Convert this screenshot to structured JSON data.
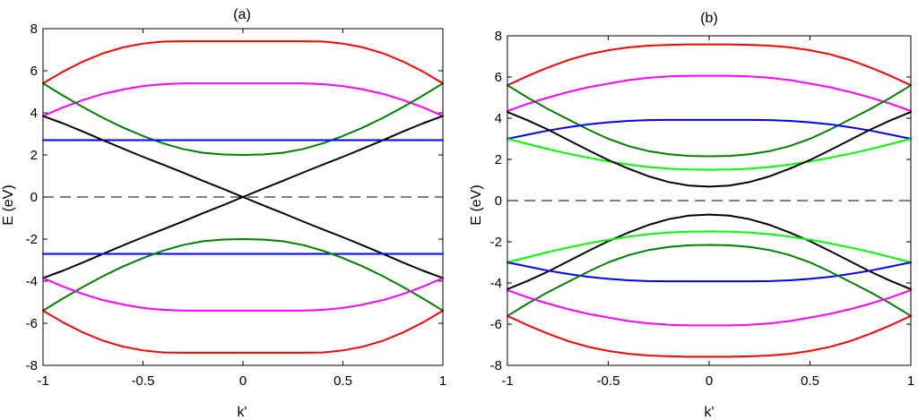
{
  "chart_data": [
    {
      "type": "line",
      "title": "(a)",
      "xlabel": "k'",
      "ylabel": "E (eV)",
      "xlim": [
        -1,
        1
      ],
      "ylim": [
        -8,
        8
      ],
      "x_ticks": [
        "-1",
        "-0.5",
        "0",
        "0.5",
        "1"
      ],
      "y_ticks": [
        "8",
        "6",
        "4",
        "2",
        "0",
        "-2",
        "-4",
        "-6",
        "-8"
      ],
      "grid": false,
      "x": [
        -1,
        -0.9,
        -0.8,
        -0.7,
        -0.6,
        -0.5,
        -0.4,
        -0.3,
        -0.2,
        -0.1,
        0,
        0.1,
        0.2,
        0.3,
        0.4,
        0.5,
        0.6,
        0.7,
        0.8,
        0.9,
        1
      ],
      "reference_line": {
        "y": 0,
        "style": "dashed",
        "color": "#000000"
      },
      "series": [
        {
          "color": "#ff0000",
          "values": [
            5.4,
            5.96,
            6.44,
            6.83,
            7.11,
            7.29,
            7.39,
            7.4,
            7.4,
            7.4,
            7.4,
            7.4,
            7.4,
            7.4,
            7.39,
            7.29,
            7.11,
            6.83,
            6.44,
            5.96,
            5.4
          ]
        },
        {
          "color": "#ff00ff",
          "values": [
            3.85,
            4.26,
            4.61,
            4.9,
            5.11,
            5.27,
            5.36,
            5.4,
            5.4,
            5.4,
            5.4,
            5.4,
            5.4,
            5.4,
            5.36,
            5.27,
            5.11,
            4.9,
            4.61,
            4.26,
            3.85
          ]
        },
        {
          "color": "#008000",
          "values": [
            5.4,
            4.82,
            4.27,
            3.76,
            3.3,
            2.9,
            2.55,
            2.28,
            2.1,
            2.02,
            2.0,
            2.02,
            2.1,
            2.28,
            2.55,
            2.9,
            3.3,
            3.76,
            4.27,
            4.82,
            5.4
          ]
        },
        {
          "color": "#0000ff",
          "values": [
            2.7,
            2.7,
            2.7,
            2.7,
            2.7,
            2.7,
            2.7,
            2.7,
            2.7,
            2.7,
            2.7,
            2.7,
            2.7,
            2.7,
            2.7,
            2.7,
            2.7,
            2.7,
            2.7,
            2.7,
            2.7
          ]
        },
        {
          "color": "#000000",
          "values": [
            3.85,
            3.5,
            3.11,
            2.7,
            2.3,
            1.91,
            1.54,
            1.16,
            0.77,
            0.39,
            0,
            0.39,
            0.77,
            1.16,
            1.54,
            1.91,
            2.3,
            2.7,
            3.11,
            3.5,
            3.85
          ]
        },
        {
          "color": "#000000",
          "values": [
            -3.85,
            -3.5,
            -3.11,
            -2.7,
            -2.3,
            -1.91,
            -1.54,
            -1.16,
            -0.77,
            -0.39,
            0,
            -0.39,
            -0.77,
            -1.16,
            -1.54,
            -1.91,
            -2.3,
            -2.7,
            -3.11,
            -3.5,
            -3.85
          ]
        },
        {
          "color": "#0000ff",
          "values": [
            -2.7,
            -2.7,
            -2.7,
            -2.7,
            -2.7,
            -2.7,
            -2.7,
            -2.7,
            -2.7,
            -2.7,
            -2.7,
            -2.7,
            -2.7,
            -2.7,
            -2.7,
            -2.7,
            -2.7,
            -2.7,
            -2.7,
            -2.7,
            -2.7
          ]
        },
        {
          "color": "#008000",
          "values": [
            -5.4,
            -4.82,
            -4.27,
            -3.76,
            -3.3,
            -2.9,
            -2.55,
            -2.28,
            -2.1,
            -2.02,
            -2.0,
            -2.02,
            -2.1,
            -2.28,
            -2.55,
            -2.9,
            -3.3,
            -3.76,
            -4.27,
            -4.82,
            -5.4
          ]
        },
        {
          "color": "#ff00ff",
          "values": [
            -3.85,
            -4.26,
            -4.61,
            -4.9,
            -5.11,
            -5.27,
            -5.36,
            -5.4,
            -5.4,
            -5.4,
            -5.4,
            -5.4,
            -5.4,
            -5.4,
            -5.36,
            -5.27,
            -5.11,
            -4.9,
            -4.61,
            -4.26,
            -3.85
          ]
        },
        {
          "color": "#ff0000",
          "values": [
            -5.4,
            -5.96,
            -6.44,
            -6.83,
            -7.11,
            -7.29,
            -7.39,
            -7.4,
            -7.4,
            -7.4,
            -7.4,
            -7.4,
            -7.4,
            -7.4,
            -7.39,
            -7.29,
            -7.11,
            -6.83,
            -6.44,
            -5.96,
            -5.4
          ]
        }
      ]
    },
    {
      "type": "line",
      "title": "(b)",
      "xlabel": "k'",
      "ylabel": "E (eV)",
      "xlim": [
        -1,
        1
      ],
      "ylim": [
        -8,
        8
      ],
      "x_ticks": [
        "-1",
        "-0.5",
        "0",
        "0.5",
        "1"
      ],
      "y_ticks": [
        "8",
        "6",
        "4",
        "2",
        "0",
        "-2",
        "-4",
        "-6",
        "-8"
      ],
      "grid": false,
      "x": [
        -1,
        -0.9,
        -0.8,
        -0.7,
        -0.6,
        -0.5,
        -0.4,
        -0.3,
        -0.2,
        -0.1,
        0,
        0.1,
        0.2,
        0.3,
        0.4,
        0.5,
        0.6,
        0.7,
        0.8,
        0.9,
        1
      ],
      "reference_line": {
        "y": 0,
        "style": "dashed",
        "color": "#000000"
      },
      "series": [
        {
          "color": "#ff0000",
          "values": [
            5.6,
            6.05,
            6.46,
            6.82,
            7.1,
            7.3,
            7.44,
            7.52,
            7.56,
            7.58,
            7.58,
            7.58,
            7.56,
            7.52,
            7.44,
            7.3,
            7.1,
            6.82,
            6.46,
            6.05,
            5.6
          ]
        },
        {
          "color": "#ff00ff",
          "values": [
            4.35,
            4.7,
            5.0,
            5.27,
            5.5,
            5.68,
            5.85,
            5.96,
            6.03,
            6.06,
            6.06,
            6.06,
            6.03,
            5.96,
            5.85,
            5.68,
            5.5,
            5.27,
            5.0,
            4.7,
            4.35
          ]
        },
        {
          "color": "#008000",
          "values": [
            5.6,
            5.0,
            4.45,
            3.95,
            3.45,
            3.0,
            2.65,
            2.4,
            2.25,
            2.17,
            2.15,
            2.17,
            2.25,
            2.4,
            2.65,
            3.0,
            3.45,
            3.95,
            4.45,
            5.0,
            5.6
          ]
        },
        {
          "color": "#0000ff",
          "values": [
            3.0,
            3.2,
            3.4,
            3.56,
            3.7,
            3.8,
            3.87,
            3.91,
            3.92,
            3.92,
            3.92,
            3.92,
            3.92,
            3.91,
            3.87,
            3.8,
            3.7,
            3.56,
            3.4,
            3.2,
            3.0
          ]
        },
        {
          "color": "#00ff00",
          "values": [
            3.0,
            2.75,
            2.5,
            2.28,
            2.08,
            1.9,
            1.75,
            1.63,
            1.55,
            1.51,
            1.5,
            1.51,
            1.55,
            1.63,
            1.75,
            1.9,
            2.08,
            2.28,
            2.5,
            2.75,
            3.0
          ]
        },
        {
          "color": "#000000",
          "values": [
            4.3,
            3.9,
            3.45,
            2.95,
            2.45,
            1.97,
            1.55,
            1.18,
            0.9,
            0.73,
            0.68,
            0.73,
            0.9,
            1.18,
            1.55,
            1.97,
            2.45,
            2.95,
            3.45,
            3.9,
            4.3
          ]
        },
        {
          "color": "#000000",
          "values": [
            -4.3,
            -3.9,
            -3.45,
            -2.95,
            -2.45,
            -1.97,
            -1.55,
            -1.18,
            -0.9,
            -0.73,
            -0.68,
            -0.73,
            -0.9,
            -1.18,
            -1.55,
            -1.97,
            -2.45,
            -2.95,
            -3.45,
            -3.9,
            -4.3
          ]
        },
        {
          "color": "#00ff00",
          "values": [
            -3.0,
            -2.75,
            -2.5,
            -2.28,
            -2.08,
            -1.9,
            -1.75,
            -1.63,
            -1.55,
            -1.51,
            -1.5,
            -1.51,
            -1.55,
            -1.63,
            -1.75,
            -1.9,
            -2.08,
            -2.28,
            -2.5,
            -2.75,
            -3.0
          ]
        },
        {
          "color": "#0000ff",
          "values": [
            -3.0,
            -3.2,
            -3.4,
            -3.56,
            -3.7,
            -3.8,
            -3.87,
            -3.91,
            -3.92,
            -3.92,
            -3.92,
            -3.92,
            -3.92,
            -3.91,
            -3.87,
            -3.8,
            -3.7,
            -3.56,
            -3.4,
            -3.2,
            -3.0
          ]
        },
        {
          "color": "#008000",
          "values": [
            -5.6,
            -5.0,
            -4.45,
            -3.95,
            -3.45,
            -3.0,
            -2.65,
            -2.4,
            -2.25,
            -2.17,
            -2.15,
            -2.17,
            -2.25,
            -2.4,
            -2.65,
            -3.0,
            -3.45,
            -3.95,
            -4.45,
            -5.0,
            -5.6
          ]
        },
        {
          "color": "#ff00ff",
          "values": [
            -4.35,
            -4.7,
            -5.0,
            -5.27,
            -5.5,
            -5.68,
            -5.85,
            -5.96,
            -6.03,
            -6.06,
            -6.06,
            -6.06,
            -6.03,
            -5.96,
            -5.85,
            -5.68,
            -5.5,
            -5.27,
            -5.0,
            -4.7,
            -4.35
          ]
        },
        {
          "color": "#ff0000",
          "values": [
            -5.6,
            -6.05,
            -6.46,
            -6.82,
            -7.1,
            -7.3,
            -7.44,
            -7.52,
            -7.56,
            -7.58,
            -7.58,
            -7.58,
            -7.56,
            -7.52,
            -7.44,
            -7.3,
            -7.1,
            -6.82,
            -6.46,
            -6.05,
            -5.6
          ]
        }
      ]
    }
  ]
}
